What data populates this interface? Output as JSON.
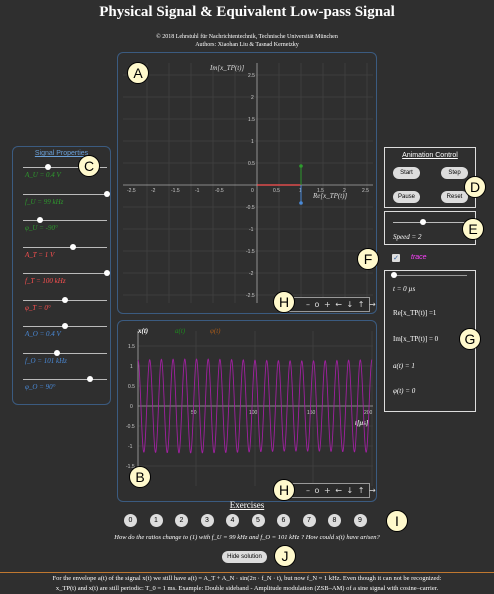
{
  "header": {
    "title": "Physical Signal & Equivalent Low-pass Signal",
    "copyright": "© 2018 Lehrstuhl für Nachrichtentechnik, Technische Universität München",
    "authors": "Authors: Xiaohan Liu & Tasnad Kernetzky"
  },
  "plot_a": {
    "y_label": "Im[x_TP(t)]",
    "x_label": "Re[x_TP(t)]",
    "y_ticks": [
      "2.5",
      "2",
      "1.5",
      "1",
      "0.5",
      "-0.5",
      "-1",
      "-1.5",
      "-2",
      "-2.5"
    ],
    "x_ticks": [
      "-2.5",
      "-2",
      "-1.5",
      "-1",
      "-0.5",
      "0",
      "0.5",
      "1",
      "1.5",
      "2",
      "2.5"
    ]
  },
  "plot_b": {
    "legend": [
      "x(t)",
      "a(t)",
      "φ(t)"
    ],
    "x_label": "t[µs]",
    "y_ticks": [
      "1.5",
      "1",
      "0.5",
      "0",
      "-0.5",
      "-1",
      "-1.5"
    ],
    "x_ticks": [
      "50",
      "100",
      "150",
      "200"
    ],
    "colors": {
      "x": "#a020a0",
      "a": "#1e8a1e",
      "phi": "#a65a1a"
    }
  },
  "signal_properties": {
    "title": "Signal Properties",
    "sliders": [
      {
        "label": "A_U = 0.4 V",
        "color": "#2e9a2e",
        "level": 0.3
      },
      {
        "label": "f_U = 99 kHz",
        "color": "#2e9a2e",
        "level": 1.0
      },
      {
        "label": "φ_U = -90°",
        "color": "#2e9a2e",
        "level": 0.2
      },
      {
        "label": "A_T = 1 V",
        "color": "#ff5050",
        "level": 0.6
      },
      {
        "label": "f_T = 100 kHz",
        "color": "#ff5050",
        "level": 1.0
      },
      {
        "label": "φ_T = 0°",
        "color": "#ff5050",
        "level": 0.5
      },
      {
        "label": "A_O = 0.4 V",
        "color": "#4a8ad8",
        "level": 0.5
      },
      {
        "label": "f_O = 101 kHz",
        "color": "#4a8ad8",
        "level": 0.4
      },
      {
        "label": "φ_O = 90°",
        "color": "#4a8ad8",
        "level": 0.8
      }
    ]
  },
  "animation": {
    "title": "Animation Control",
    "start": "Start",
    "step": "Step",
    "pause": "Pause",
    "reset": "Reset"
  },
  "speed": {
    "label": "Speed = 2",
    "level": 0.4
  },
  "trace": {
    "label": "trace",
    "checked": true
  },
  "values": {
    "t": "t = 0 µs",
    "re": "Re[x_TP(t)] =1",
    "im": "Im[x_TP(t)] = 0",
    "a": "a(t) = 1",
    "phi": "φ(t) = 0"
  },
  "toolbar": {
    "icons": "– o + ← ↓ ↑ →"
  },
  "markers": [
    "A",
    "B",
    "C",
    "D",
    "E",
    "F",
    "G",
    "H",
    "H",
    "I",
    "J"
  ],
  "exercises": {
    "title": "Exercises",
    "items": [
      "0",
      "1",
      "2",
      "3",
      "4",
      "5",
      "6",
      "7",
      "8",
      "9"
    ],
    "question": "How do the ratios change to (1) with f_U = 99 kHz and f_O = 101 kHz ? How could x(t) have arisen?",
    "hide_button": "Hide solution",
    "solution_line1": "For the envelope a(t) of the signal x(t) we still have a(t) = A_T + A_N · sin(2π · f_N · t), but now f_N = 1 kHz. Even though it can not be recognized:",
    "solution_line2": "x_TP(t) and x(t) are still periodic:  T_0 = 1 ms. Example: Double sideband - Amplitude modulation (ZSB–AM) of a sine signal with cosine–carrier."
  }
}
